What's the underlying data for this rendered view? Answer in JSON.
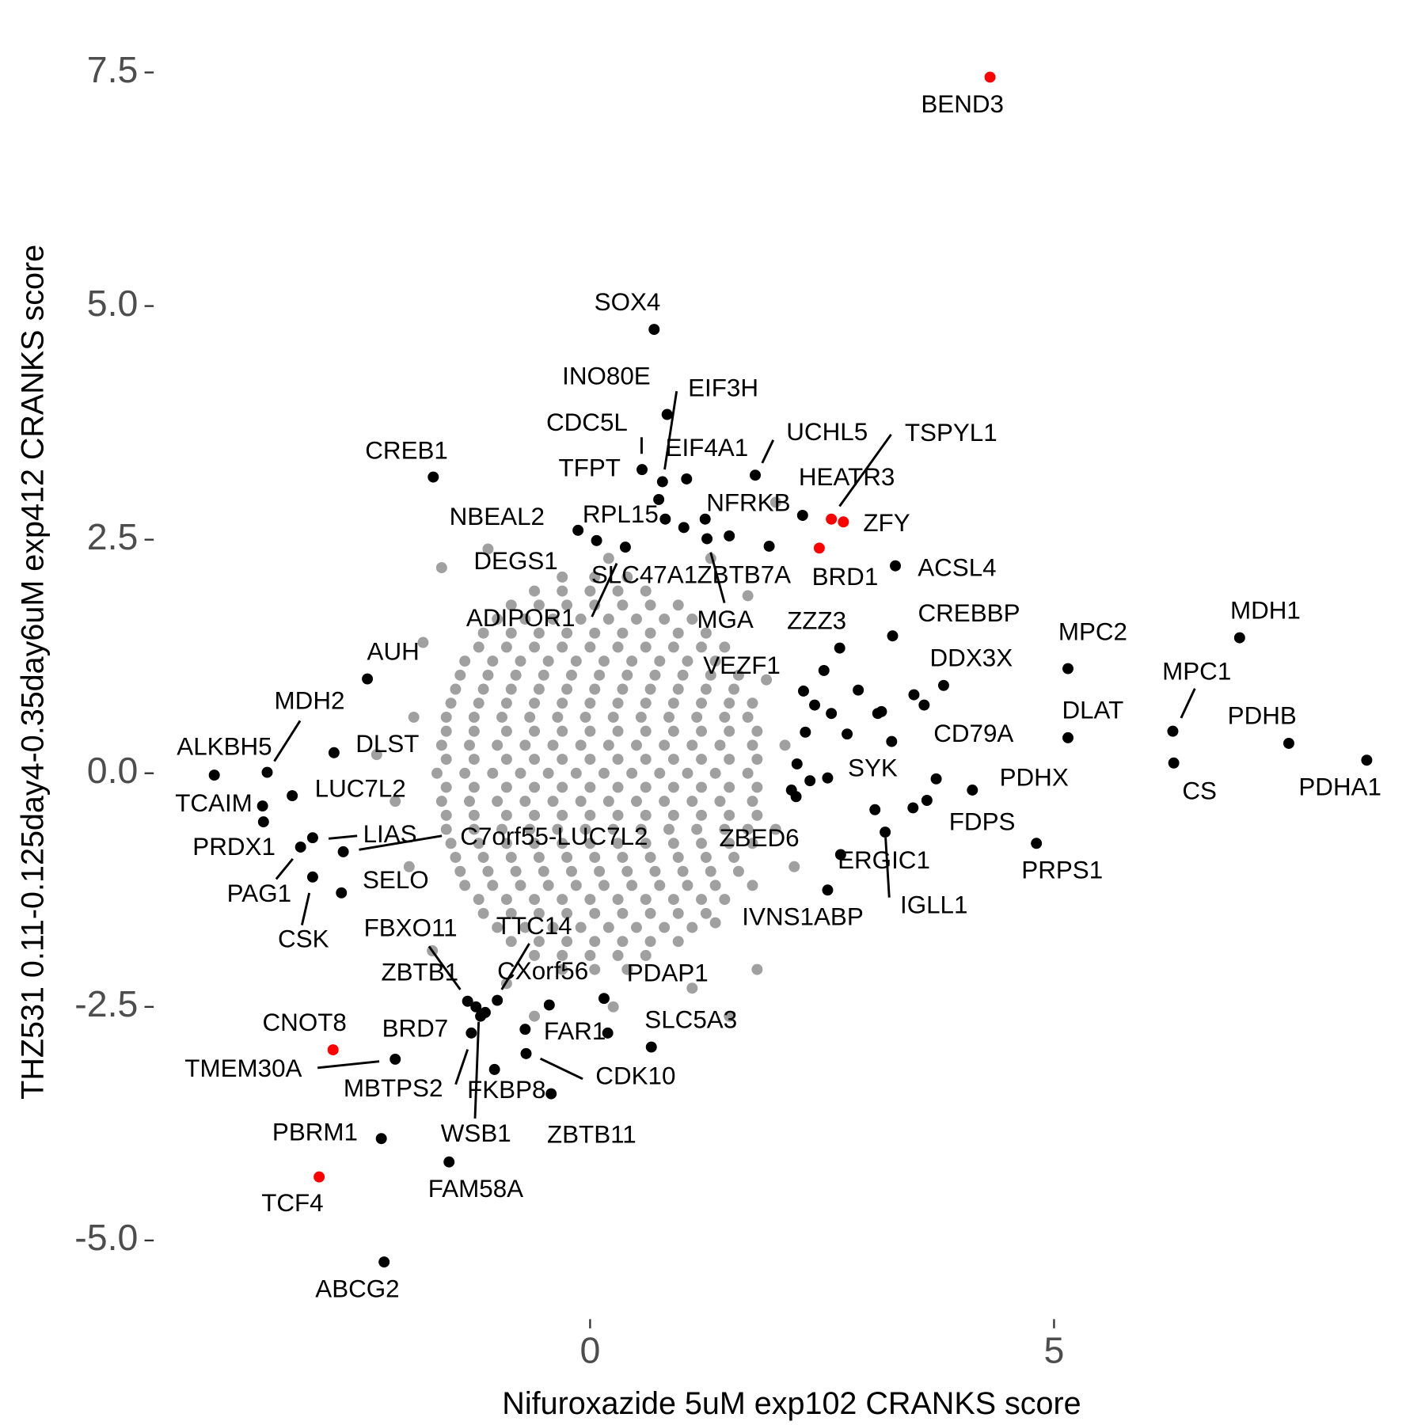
{
  "chart_data": {
    "type": "scatter",
    "x_label": "Nifuroxazide 5uM exp102 CRANKS score",
    "y_label": "THZ531 0.11-0.125day4-0.35day6uM exp412 CRANKS score",
    "xlim": [
      -4.67,
      8.72
    ],
    "ylim": [
      -5.71,
      7.78
    ],
    "xticks": [
      0,
      5
    ],
    "yticks": [
      {
        "value": -5,
        "label": "-5.0"
      },
      -2.5,
      {
        "value": 0,
        "label": "0.0"
      },
      2.5,
      {
        "value": 5,
        "label": "5.0"
      },
      7.5
    ],
    "grid": false,
    "series": [
      {
        "color": "#a0a0a0",
        "x": [
          -0.3,
          0.05,
          0.4,
          -0.85,
          -0.55,
          -0.25,
          0.05,
          0.35,
          0.65,
          0.95,
          -1.15,
          -0.85,
          -0.55,
          -0.25,
          0.05,
          0.35,
          0.65,
          0.95,
          1.25,
          -1.35,
          -1.05,
          -0.75,
          -0.45,
          -0.15,
          0.15,
          0.45,
          0.75,
          1.05,
          1.35,
          -1.45,
          -1.15,
          -0.85,
          -0.55,
          -0.25,
          0.05,
          0.35,
          0.65,
          0.95,
          1.25,
          1.55,
          -1.55,
          -1.25,
          -0.95,
          -0.65,
          -0.35,
          -0.05,
          0.25,
          0.55,
          0.85,
          1.15,
          1.45,
          1.7,
          -1.6,
          -1.3,
          -1.0,
          -0.7,
          -0.4,
          -0.1,
          0.2,
          0.5,
          0.8,
          1.1,
          1.4,
          1.75,
          -1.65,
          -1.35,
          -1.05,
          -0.75,
          -0.45,
          -0.15,
          0.15,
          0.45,
          0.75,
          1.05,
          1.35,
          1.7,
          -1.6,
          -1.3,
          -1.0,
          -0.7,
          -0.4,
          -0.1,
          0.2,
          0.5,
          0.8,
          1.1,
          1.4,
          1.75,
          -1.55,
          -1.25,
          -0.95,
          -0.65,
          -0.35,
          -0.05,
          0.25,
          0.55,
          0.85,
          1.15,
          1.45,
          1.7,
          -1.45,
          -1.15,
          -0.85,
          -0.55,
          -0.25,
          0.05,
          0.35,
          0.65,
          0.95,
          1.25,
          1.55,
          -1.35,
          -1.05,
          -0.75,
          -0.45,
          -0.15,
          0.15,
          0.45,
          0.75,
          1.05,
          1.35,
          -1.15,
          -0.85,
          -0.55,
          -0.25,
          0.05,
          0.35,
          0.65,
          0.95,
          1.25,
          -0.85,
          -0.55,
          -0.25,
          0.05,
          0.35,
          0.65,
          0.95,
          -0.3,
          0.05,
          0.4,
          -0.6,
          -0.3,
          0,
          0.3,
          0.6,
          -1.0,
          -0.7,
          -0.4,
          -0.1,
          0.2,
          0.5,
          0.8,
          1.1,
          -1.2,
          -0.9,
          -0.6,
          -0.3,
          0,
          0.3,
          0.6,
          0.9,
          1.2,
          1.45,
          -1.4,
          -1.1,
          -0.8,
          -0.5,
          -0.2,
          0.1,
          0.4,
          0.7,
          1.0,
          1.3,
          1.6,
          -1.5,
          -1.2,
          -0.9,
          -0.6,
          -0.3,
          0,
          0.3,
          0.6,
          0.9,
          1.2,
          1.5,
          1.75,
          -1.55,
          -1.25,
          -0.9,
          -0.6,
          -0.3,
          0,
          0.3,
          0.6,
          0.9,
          1.2,
          1.5,
          1.8,
          -1.55,
          -1.25,
          -0.9,
          -0.6,
          -0.3,
          0,
          0.3,
          0.6,
          0.9,
          1.2,
          1.5,
          1.8,
          -1.55,
          -1.25,
          -0.9,
          -0.6,
          -0.3,
          0,
          0.3,
          0.6,
          0.9,
          1.2,
          1.5,
          1.8,
          -1.55,
          -1.25,
          -0.9,
          -0.6,
          -0.3,
          0,
          0.3,
          0.6,
          0.9,
          1.2,
          1.5,
          1.8,
          -1.5,
          -1.2,
          -0.9,
          -0.6,
          -0.3,
          0,
          0.3,
          0.6,
          0.9,
          1.2,
          1.5,
          1.75,
          -1.4,
          -1.1,
          -0.8,
          -0.5,
          -0.2,
          0.1,
          0.4,
          0.7,
          1.0,
          1.3,
          1.6,
          -1.2,
          -0.9,
          -0.6,
          -0.3,
          0,
          0.3,
          0.6,
          0.9,
          1.2,
          1.45,
          -1.0,
          -0.7,
          -0.4,
          -0.1,
          0.2,
          0.5,
          0.8,
          1.1,
          -0.6,
          -0.3,
          0,
          0.3,
          0.6,
          -1.9,
          -2.1,
          -1.95,
          -1.8,
          -1.6,
          -1.1,
          -0.6,
          0.25,
          1.1,
          1.35,
          1.75,
          2.0,
          2.1,
          1.9,
          1.7,
          1.3,
          2.0,
          0.2,
          -0.9,
          1.8,
          -2.3,
          -1.7,
          2.2,
          1.5
        ],
        "values": [
          2.1,
          2.1,
          2.1,
          1.8,
          1.8,
          1.8,
          1.8,
          1.8,
          1.8,
          1.8,
          1.5,
          1.5,
          1.5,
          1.5,
          1.5,
          1.5,
          1.5,
          1.5,
          1.5,
          1.2,
          1.2,
          1.2,
          1.2,
          1.2,
          1.2,
          1.2,
          1.2,
          1.2,
          1.2,
          0.9,
          0.9,
          0.9,
          0.9,
          0.9,
          0.9,
          0.9,
          0.9,
          0.9,
          0.9,
          0.9,
          0.6,
          0.6,
          0.6,
          0.6,
          0.6,
          0.6,
          0.6,
          0.6,
          0.6,
          0.6,
          0.6,
          0.6,
          0.3,
          0.3,
          0.3,
          0.3,
          0.3,
          0.3,
          0.3,
          0.3,
          0.3,
          0.3,
          0.3,
          0.3,
          0,
          0,
          0,
          0,
          0,
          0,
          0,
          0,
          0,
          0,
          0,
          0,
          -0.3,
          -0.3,
          -0.3,
          -0.3,
          -0.3,
          -0.3,
          -0.3,
          -0.3,
          -0.3,
          -0.3,
          -0.3,
          -0.3,
          -0.6,
          -0.6,
          -0.6,
          -0.6,
          -0.6,
          -0.6,
          -0.6,
          -0.6,
          -0.6,
          -0.6,
          -0.6,
          -0.6,
          -0.9,
          -0.9,
          -0.9,
          -0.9,
          -0.9,
          -0.9,
          -0.9,
          -0.9,
          -0.9,
          -0.9,
          -0.9,
          -1.2,
          -1.2,
          -1.2,
          -1.2,
          -1.2,
          -1.2,
          -1.2,
          -1.2,
          -1.2,
          -1.2,
          -1.5,
          -1.5,
          -1.5,
          -1.5,
          -1.5,
          -1.5,
          -1.5,
          -1.5,
          -1.5,
          -1.8,
          -1.8,
          -1.8,
          -1.8,
          -1.8,
          -1.8,
          -1.8,
          -2.1,
          -2.1,
          -2.1,
          1.95,
          1.95,
          1.95,
          1.95,
          1.95,
          1.65,
          1.65,
          1.65,
          1.65,
          1.65,
          1.65,
          1.65,
          1.65,
          1.35,
          1.35,
          1.35,
          1.35,
          1.35,
          1.35,
          1.35,
          1.35,
          1.35,
          1.35,
          1.05,
          1.05,
          1.05,
          1.05,
          1.05,
          1.05,
          1.05,
          1.05,
          1.05,
          1.05,
          1.05,
          0.75,
          0.75,
          0.75,
          0.75,
          0.75,
          0.75,
          0.75,
          0.75,
          0.75,
          0.75,
          0.75,
          0.75,
          0.45,
          0.45,
          0.45,
          0.45,
          0.45,
          0.45,
          0.45,
          0.45,
          0.45,
          0.45,
          0.45,
          0.45,
          0.15,
          0.15,
          0.15,
          0.15,
          0.15,
          0.15,
          0.15,
          0.15,
          0.15,
          0.15,
          0.15,
          0.15,
          -0.15,
          -0.15,
          -0.15,
          -0.15,
          -0.15,
          -0.15,
          -0.15,
          -0.15,
          -0.15,
          -0.15,
          -0.15,
          -0.15,
          -0.45,
          -0.45,
          -0.45,
          -0.45,
          -0.45,
          -0.45,
          -0.45,
          -0.45,
          -0.45,
          -0.45,
          -0.45,
          -0.45,
          -0.75,
          -0.75,
          -0.75,
          -0.75,
          -0.75,
          -0.75,
          -0.75,
          -0.75,
          -0.75,
          -0.75,
          -0.75,
          -0.75,
          -1.05,
          -1.05,
          -1.05,
          -1.05,
          -1.05,
          -1.05,
          -1.05,
          -1.05,
          -1.05,
          -1.05,
          -1.05,
          -1.35,
          -1.35,
          -1.35,
          -1.35,
          -1.35,
          -1.35,
          -1.35,
          -1.35,
          -1.35,
          -1.35,
          -1.65,
          -1.65,
          -1.65,
          -1.65,
          -1.65,
          -1.65,
          -1.65,
          -1.65,
          -1.95,
          -1.95,
          -1.95,
          -1.95,
          -1.95,
          0.6,
          -0.3,
          -1.0,
          1.4,
          2.2,
          2.4,
          -2.6,
          -2.5,
          -2.3,
          -1.6,
          -1.2,
          -0.6,
          0.3,
          1.0,
          1.9,
          2.3,
          2.9,
          2.3,
          -2.25,
          -2.1,
          0.2,
          -1.9,
          -1.0,
          -2.6
        ]
      },
      {
        "color": "#000000",
        "x": [
          0.69,
          0.83,
          0.78,
          0.56,
          0.74,
          1.04,
          1.78,
          -1.69,
          -0.13,
          0.07,
          0.38,
          0.81,
          1.26,
          1.5,
          1.01,
          1.24,
          2.29,
          1.93,
          3.29,
          3.26,
          2.69,
          2.3,
          5.15,
          7.0,
          3.81,
          5.15,
          6.28,
          6.29,
          7.53,
          8.37,
          4.12,
          3.25,
          2.56,
          3.63,
          4.81,
          2.7,
          3.18,
          2.22,
          2.56,
          2.42,
          2.52,
          2.77,
          2.89,
          3.1,
          3.49,
          3.6,
          3.48,
          3.73,
          2.23,
          2.37,
          2.17,
          3.07,
          2.32,
          2.6,
          3.14,
          -2.4,
          -3.48,
          -4.05,
          -2.76,
          -3.53,
          -3.21,
          -3.52,
          -3.12,
          -2.99,
          -2.66,
          -2.99,
          -2.68,
          -1.32,
          -1.23,
          -1.13,
          -1.18,
          -1.0,
          -0.44,
          0.15,
          -0.7,
          0.19,
          0.66,
          -0.69,
          -1.28,
          -1.03,
          -0.42,
          -2.1,
          -2.25,
          -1.52,
          -2.22
        ],
        "values": [
          4.75,
          3.84,
          3.12,
          3.25,
          2.93,
          3.15,
          3.19,
          3.17,
          2.6,
          2.49,
          2.42,
          2.72,
          2.51,
          2.54,
          2.63,
          2.72,
          2.76,
          2.43,
          2.22,
          1.47,
          1.34,
          0.88,
          1.12,
          1.45,
          0.94,
          0.38,
          0.45,
          0.11,
          0.32,
          0.14,
          -0.18,
          0.34,
          -0.05,
          -0.29,
          -0.75,
          -0.87,
          -0.63,
          -0.25,
          -1.25,
          0.73,
          1.1,
          0.42,
          0.89,
          0.64,
          0.84,
          0.73,
          -0.37,
          -0.06,
          0.1,
          -0.08,
          -0.18,
          -0.39,
          0.44,
          0.64,
          0.66,
          1.01,
          0.01,
          -0.02,
          0.22,
          -0.35,
          -0.24,
          -0.52,
          -0.79,
          -0.69,
          -0.84,
          -1.11,
          -1.28,
          -2.44,
          -2.5,
          -2.56,
          -2.6,
          -2.43,
          -2.48,
          -2.41,
          -2.74,
          -2.78,
          -2.93,
          -3.0,
          -2.78,
          -3.17,
          -3.43,
          -3.06,
          -3.91,
          -4.16,
          -5.23
        ],
        "labels": [
          "SOX4",
          "INO80E",
          "EIF3H",
          "TFPT",
          "CDC5L",
          "EIF4A1",
          "UCHL5",
          "CREB1",
          "NBEAL2",
          "RPL15",
          "DEGS1",
          "ADIPOR1",
          "SLC47A1",
          "ZBTB7A",
          "MGA",
          "NFRKB",
          "HEATR3",
          null,
          "ACSL4",
          "CREBBP",
          "ZZZ3",
          "VEZF1",
          "MPC2",
          "MDH1",
          "DDX3X",
          "DLAT",
          "MPC1",
          "CS",
          "PDHB",
          "PDHA1",
          "PDHX",
          "CD79A",
          "SYK",
          "FDPS",
          "PRPS1",
          "ERGIC1",
          "IGLL1",
          "ZBED6",
          "IVNS1ABP",
          null,
          null,
          null,
          null,
          null,
          null,
          null,
          null,
          null,
          null,
          null,
          null,
          null,
          null,
          null,
          null,
          "AUH",
          "MDH2",
          "ALKBH5",
          "DLST",
          "TCAIM",
          "LUC7L2",
          "PRDX1",
          "PAG1",
          "LIAS",
          "C7orf55-LUC7L2",
          "CSK",
          "SELO",
          "FBXO11",
          "ZBTB1",
          "MBTPS2",
          "WSB1",
          "TTC14",
          "CXorf56",
          "PDAP1",
          "FAR1",
          null,
          "SLC5A3",
          "CDK10",
          "BRD7",
          "FKBP8",
          "ZBTB11",
          "TMEM30A",
          "PBRM1",
          "FAM58A",
          "ABCG2"
        ]
      },
      {
        "color": "#ff0000",
        "x": [
          4.31,
          2.6,
          2.73,
          2.47,
          -2.77,
          -2.92
        ],
        "values": [
          7.45,
          2.72,
          2.69,
          2.41,
          -2.96,
          -4.32
        ],
        "labels": [
          "BEND3",
          "TSPYL1",
          "ZFY",
          "BRD1",
          "CNOT8",
          "TCF4"
        ]
      }
    ]
  }
}
